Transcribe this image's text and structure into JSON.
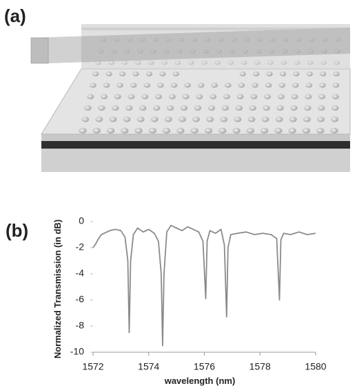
{
  "panel_labels": [
    "(a)",
    "(b)"
  ],
  "chart_data": {
    "type": "line",
    "x_label": "wavelength (nm)",
    "y_label": "Normalized Transmission (in dB)",
    "x": [
      1572,
      1572.1,
      1572.2,
      1572.3,
      1572.4,
      1572.6,
      1572.8,
      1573.0,
      1573.15,
      1573.25,
      1573.3,
      1573.35,
      1573.45,
      1573.6,
      1573.8,
      1574.0,
      1574.2,
      1574.35,
      1574.45,
      1574.5,
      1574.55,
      1574.65,
      1574.8,
      1575.0,
      1575.2,
      1575.4,
      1575.6,
      1575.8,
      1575.95,
      1576.05,
      1576.1,
      1576.2,
      1576.4,
      1576.6,
      1576.72,
      1576.8,
      1576.85,
      1576.95,
      1577.2,
      1577.5,
      1577.8,
      1578.1,
      1578.4,
      1578.6,
      1578.7,
      1578.75,
      1578.85,
      1579.1,
      1579.4,
      1579.7,
      1580
    ],
    "series": [
      {
        "color": "#8a8a8a",
        "values": [
          -2,
          -1.7,
          -1.3,
          -1,
          -0.9,
          -0.7,
          -0.6,
          -0.7,
          -1.2,
          -3,
          -8.5,
          -3,
          -1,
          -0.5,
          -0.8,
          -0.6,
          -0.9,
          -1.5,
          -4,
          -9.5,
          -4,
          -0.8,
          -0.3,
          -0.5,
          -0.7,
          -0.4,
          -0.6,
          -0.8,
          -1.5,
          -5.9,
          -1.5,
          -0.7,
          -0.9,
          -0.6,
          -1.8,
          -7.3,
          -2,
          -1,
          -0.9,
          -0.8,
          -1,
          -0.9,
          -1,
          -1.3,
          -6,
          -1.4,
          -0.9,
          -1,
          -0.8,
          -1,
          -0.9
        ]
      }
    ],
    "xlim": [
      1572,
      1580
    ],
    "xticks": [
      1572,
      1574,
      1576,
      1578,
      1580
    ],
    "ylim": [
      -10,
      0
    ],
    "yticks": [
      0,
      -2,
      -4,
      -6,
      -8,
      -10
    ],
    "grid": false
  }
}
